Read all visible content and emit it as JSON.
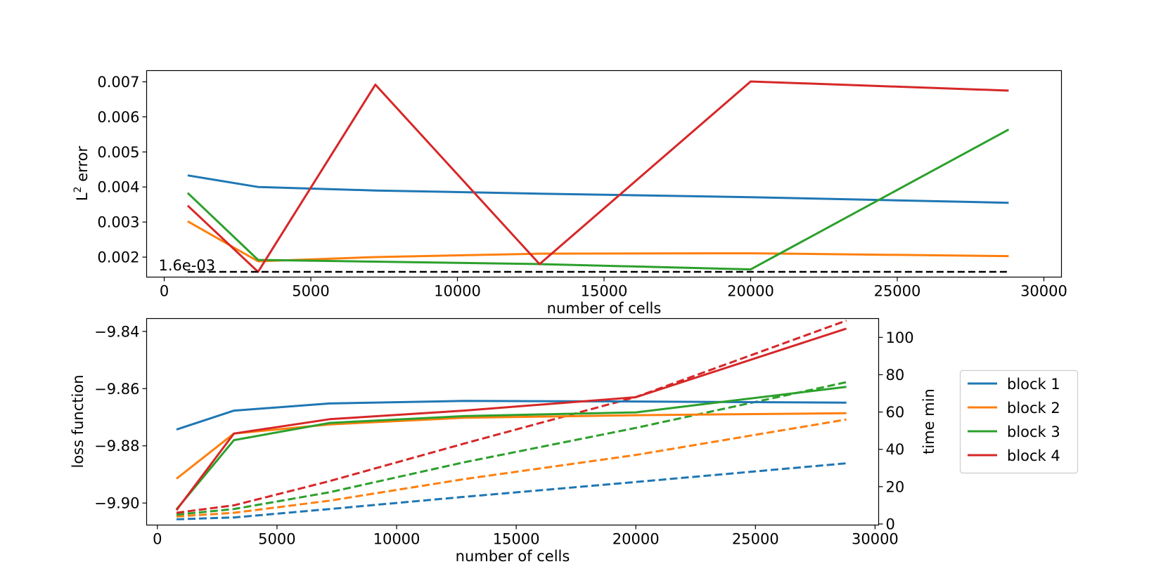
{
  "colors": {
    "block 1": "#1f77b4",
    "block 2": "#ff7f0e",
    "block 3": "#2ca02c",
    "block 4": "#d62728",
    "threshold": "#000000"
  },
  "legend": {
    "placement": "center-right",
    "entries": [
      "block 1",
      "block 2",
      "block 3",
      "block 4"
    ]
  },
  "chart_data": [
    {
      "type": "line",
      "xlabel": "number of cells",
      "ylabel": "L² error",
      "ylabel_main": "L",
      "ylabel_sup": "2",
      "ylabel_rest": " error",
      "xlim": [
        -600,
        30600
      ],
      "ylim": [
        0.00143,
        0.00732
      ],
      "xticks": [
        0,
        5000,
        10000,
        15000,
        20000,
        25000,
        30000
      ],
      "yticks": [
        0.002,
        0.003,
        0.004,
        0.005,
        0.006,
        0.007
      ],
      "ytick_labels": [
        "0.002",
        "0.003",
        "0.004",
        "0.005",
        "0.006",
        "0.007"
      ],
      "grid": false,
      "x": [
        800,
        3200,
        7200,
        12800,
        20000,
        28800
      ],
      "series": [
        {
          "name": "block 1",
          "values": [
            0.00433,
            0.004,
            0.0039,
            0.00381,
            0.00371,
            0.00355
          ]
        },
        {
          "name": "block 2",
          "values": [
            0.00302,
            0.00188,
            0.002,
            0.0021,
            0.00211,
            0.00203
          ]
        },
        {
          "name": "block 3",
          "values": [
            0.00383,
            0.00192,
            0.00187,
            0.0018,
            0.00165,
            0.00564
          ]
        },
        {
          "name": "block 4",
          "values": [
            0.00347,
            0.00158,
            0.00692,
            0.0018,
            0.00701,
            0.00675
          ]
        }
      ],
      "threshold": {
        "value": 0.00158,
        "x_range": [
          800,
          28800
        ],
        "label": "1.6e-03"
      }
    },
    {
      "type": "line",
      "xlabel": "number of cells",
      "ylabel": "loss function",
      "ylabel_right": "time min",
      "xlim": [
        -450,
        30150
      ],
      "ylim": [
        -9.9077,
        -9.8355
      ],
      "ylim_right": [
        -0.58,
        110.1
      ],
      "xticks": [
        0,
        5000,
        10000,
        15000,
        20000,
        25000,
        30000
      ],
      "yticks": [
        -9.84,
        -9.86,
        -9.88,
        -9.9
      ],
      "ytick_labels": [
        "−9.84",
        "−9.86",
        "−9.88",
        "−9.90"
      ],
      "yticks_right": [
        0,
        20,
        40,
        60,
        80,
        100
      ],
      "grid": false,
      "x": [
        800,
        3200,
        7200,
        12800,
        20000,
        28800
      ],
      "series": [
        {
          "name": "block 1",
          "axis": "left",
          "style": "solid",
          "values": [
            -9.8743,
            -9.8677,
            -9.8652,
            -9.8643,
            -9.8645,
            -9.8649
          ]
        },
        {
          "name": "block 2",
          "axis": "left",
          "style": "solid",
          "values": [
            -9.8915,
            -9.8757,
            -9.8725,
            -9.8702,
            -9.8693,
            -9.8686
          ]
        },
        {
          "name": "block 3",
          "axis": "left",
          "style": "solid",
          "values": [
            -9.9022,
            -9.878,
            -9.872,
            -9.8696,
            -9.8683,
            -9.8594
          ]
        },
        {
          "name": "block 4",
          "axis": "left",
          "style": "solid",
          "values": [
            -9.9025,
            -9.8757,
            -9.8707,
            -9.8677,
            -9.863,
            -9.839
          ]
        },
        {
          "name": "block 1",
          "axis": "right",
          "style": "dashed",
          "values": [
            2.5,
            3.5,
            8,
            14.5,
            22.5,
            32.5
          ]
        },
        {
          "name": "block 2",
          "axis": "right",
          "style": "dashed",
          "values": [
            4,
            6,
            12.5,
            24,
            37,
            56
          ]
        },
        {
          "name": "block 3",
          "axis": "right",
          "style": "dashed",
          "values": [
            5,
            8,
            17,
            33,
            51.5,
            76
          ]
        },
        {
          "name": "block 4",
          "axis": "right",
          "style": "dashed",
          "values": [
            6,
            10,
            23,
            43,
            68,
            109
          ]
        }
      ]
    }
  ]
}
